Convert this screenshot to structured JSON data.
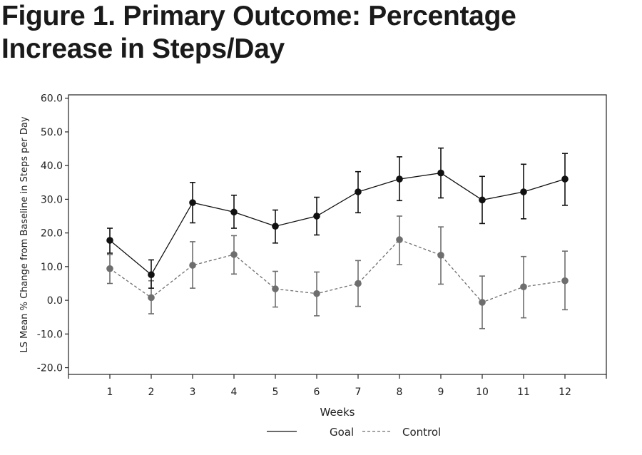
{
  "title_line1": "Figure 1. Primary Outcome: Percentage",
  "title_line2": "Increase in Steps/Day",
  "chart_data": {
    "type": "line",
    "xlabel": "Weeks",
    "ylabel": "LS Mean % Change from Baseline in Steps per Day",
    "x": [
      1,
      2,
      3,
      4,
      5,
      6,
      7,
      8,
      9,
      10,
      11,
      12
    ],
    "xlim": [
      0,
      13
    ],
    "ylim": [
      -22,
      61
    ],
    "yticks": [
      -20,
      -10,
      0,
      10,
      20,
      30,
      40,
      50,
      60
    ],
    "xtick_labels": [
      "1",
      "2",
      "3",
      "4",
      "5",
      "6",
      "7",
      "8",
      "9",
      "10",
      "11",
      "12"
    ],
    "grid": false,
    "legend_position": "bottom-center",
    "series": [
      {
        "name": "Goal",
        "color": "#111111",
        "line_style": "solid",
        "values": [
          17.8,
          7.6,
          29.0,
          26.2,
          22.0,
          25.0,
          32.2,
          36.0,
          37.8,
          29.8,
          32.2,
          36.0
        ],
        "lower": [
          14.0,
          3.6,
          23.0,
          21.4,
          17.0,
          19.4,
          26.0,
          29.6,
          30.4,
          22.8,
          24.2,
          28.2
        ],
        "upper": [
          21.4,
          12.0,
          35.0,
          31.2,
          26.8,
          30.6,
          38.2,
          42.6,
          45.2,
          36.8,
          40.4,
          43.6
        ]
      },
      {
        "name": "Control",
        "color": "#6e6e6e",
        "line_style": "dashed",
        "values": [
          9.4,
          0.8,
          10.4,
          13.6,
          3.4,
          2.0,
          5.0,
          18.0,
          13.4,
          -0.6,
          4.0,
          5.8
        ],
        "lower": [
          5.0,
          -4.0,
          3.6,
          7.8,
          -2.0,
          -4.6,
          -1.8,
          10.6,
          4.8,
          -8.4,
          -5.2,
          -2.8
        ],
        "upper": [
          13.6,
          5.8,
          17.4,
          19.2,
          8.6,
          8.4,
          11.8,
          25.0,
          21.8,
          7.2,
          13.0,
          14.6
        ]
      }
    ]
  }
}
